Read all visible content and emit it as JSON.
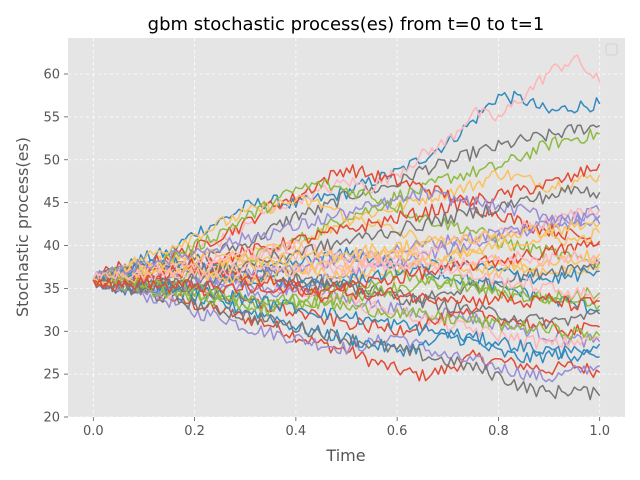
{
  "chart_data": {
    "type": "line",
    "title": "gbm stochastic process(es) from t=0 to t=1",
    "xlabel": "Time",
    "ylabel": "Stochastic process(es)",
    "xlim": [
      -0.05,
      1.05
    ],
    "ylim": [
      20,
      64.2
    ],
    "xticks": [
      0.0,
      0.2,
      0.4,
      0.6,
      0.8,
      1.0
    ],
    "xtick_labels": [
      "0.0",
      "0.2",
      "0.4",
      "0.6",
      "0.8",
      "1.0"
    ],
    "yticks": [
      20,
      25,
      30,
      35,
      40,
      45,
      50,
      55,
      60
    ],
    "ytick_labels": [
      "20",
      "25",
      "30",
      "35",
      "40",
      "45",
      "50",
      "55",
      "60"
    ],
    "grid": true,
    "legend": "top-right (empty)",
    "style": "ggplot",
    "x_start": 0.0,
    "x_end": 1.0,
    "start_value": 36,
    "palette": [
      "#e24a33",
      "#348abd",
      "#988ed5",
      "#777777",
      "#fbc15e",
      "#8eba42",
      "#ffb5b8"
    ],
    "series": [
      {
        "values": [
          36,
          37.5,
          35.2,
          34.0,
          33.1,
          32.5,
          31.5,
          30.8,
          29.5,
          28.5,
          27.8,
          26.5,
          25.5,
          24.8,
          25.6,
          27.0,
          26.5,
          26.0,
          25.5,
          26.0,
          25.2
        ]
      },
      {
        "values": [
          36,
          37.0,
          38.5,
          39.2,
          41.5,
          42.8,
          44.5,
          45.2,
          44.8,
          45.5,
          46.2,
          47.5,
          48.5,
          50.2,
          52.0,
          54.5,
          57.5,
          57.0,
          55.5,
          56.2,
          56.5
        ]
      },
      {
        "values": [
          36,
          35.0,
          34.2,
          33.5,
          32.1,
          31.8,
          30.5,
          29.8,
          29.2,
          28.5,
          28.0,
          28.6,
          29.5,
          28.1,
          27.0,
          26.5,
          25.8,
          25.1,
          24.5,
          25.3,
          26.0
        ]
      },
      {
        "values": [
          36,
          37.2,
          36.8,
          37.5,
          38.2,
          39.5,
          40.1,
          41.8,
          43.5,
          44.2,
          45.8,
          46.5,
          47.2,
          48.9,
          49.5,
          50.8,
          51.5,
          52.3,
          52.8,
          53.5,
          54.0
        ]
      },
      {
        "values": [
          36,
          36.5,
          37.8,
          38.5,
          38.1,
          37.5,
          38.9,
          39.5,
          40.2,
          41.5,
          43.0,
          43.8,
          44.5,
          45.5,
          46.2,
          47.0,
          48.5,
          47.8,
          46.9,
          47.5,
          48.2
        ]
      },
      {
        "values": [
          36,
          35.5,
          36.2,
          35.8,
          36.5,
          37.2,
          38.5,
          39.2,
          40.5,
          41.8,
          43.5,
          44.2,
          45.8,
          46.5,
          47.9,
          48.5,
          49.2,
          50.5,
          51.8,
          52.5,
          53.0
        ]
      },
      {
        "values": [
          36,
          36.8,
          37.5,
          38.2,
          39.8,
          40.5,
          42.2,
          44.0,
          45.5,
          46.2,
          47.5,
          46.8,
          48.5,
          50.5,
          52.2,
          55.5,
          54.8,
          57.5,
          60.2,
          61.8,
          59.0
        ]
      },
      {
        "values": [
          36,
          36.2,
          37.5,
          38.8,
          39.5,
          41.2,
          42.5,
          44.8,
          45.5,
          47.5,
          49.0,
          48.2,
          47.5,
          46.8,
          45.9,
          44.5,
          43.8,
          42.5,
          41.8,
          41.2,
          40.5
        ]
      },
      {
        "values": [
          36,
          34.8,
          35.2,
          34.5,
          33.8,
          33.2,
          32.5,
          31.8,
          30.5,
          29.8,
          29.2,
          28.5,
          27.8,
          28.2,
          29.5,
          28.8,
          27.5,
          26.8,
          27.2,
          27.8,
          28.5
        ]
      },
      {
        "values": [
          36,
          36.5,
          35.8,
          36.2,
          37.5,
          36.8,
          35.5,
          34.8,
          35.2,
          34.5,
          33.8,
          33.2,
          32.5,
          31.8,
          32.2,
          31.5,
          30.8,
          30.2,
          29.5,
          29.0,
          28.8
        ]
      },
      {
        "values": [
          36,
          35.2,
          34.5,
          33.8,
          33.2,
          32.5,
          31.8,
          31.2,
          30.5,
          29.8,
          29.2,
          28.5,
          27.8,
          27.2,
          26.5,
          25.8,
          24.8,
          23.5,
          22.8,
          23.2,
          22.5
        ]
      },
      {
        "values": [
          36,
          37.2,
          38.5,
          39.8,
          41.2,
          42.5,
          43.8,
          44.5,
          45.2,
          44.8,
          43.5,
          42.8,
          41.5,
          40.8,
          39.5,
          38.8,
          38.2,
          37.5,
          36.8,
          37.2,
          37.5
        ]
      },
      {
        "values": [
          36,
          36.8,
          37.2,
          38.5,
          39.8,
          41.5,
          43.2,
          44.8,
          46.5,
          47.2,
          46.5,
          45.8,
          44.5,
          43.2,
          42.5,
          41.8,
          40.5,
          39.8,
          39.2,
          38.5,
          38.0
        ]
      },
      {
        "values": [
          36,
          35.8,
          35.2,
          34.5,
          34.8,
          35.5,
          36.2,
          35.5,
          34.8,
          34.2,
          33.5,
          32.8,
          32.2,
          31.5,
          30.8,
          30.2,
          29.5,
          29.0,
          28.5,
          28.8,
          29.2
        ]
      },
      {
        "values": [
          36,
          36.2,
          36.8,
          37.5,
          37.8,
          38.5,
          39.2,
          39.8,
          40.5,
          41.2,
          41.8,
          42.5,
          43.2,
          43.8,
          44.5,
          45.2,
          45.8,
          46.5,
          47.2,
          48.0,
          49.5
        ]
      },
      {
        "values": [
          36,
          35.5,
          35.0,
          34.8,
          35.2,
          35.8,
          36.5,
          37.2,
          37.8,
          38.5,
          39.0,
          38.5,
          37.8,
          37.2,
          36.5,
          35.8,
          35.2,
          34.5,
          33.8,
          33.2,
          32.5
        ]
      },
      {
        "values": [
          36,
          36.8,
          37.5,
          36.8,
          36.2,
          35.5,
          34.8,
          34.2,
          35.0,
          35.8,
          36.5,
          37.2,
          38.0,
          38.8,
          39.5,
          40.2,
          41.0,
          41.8,
          42.5,
          43.2,
          44.0
        ]
      },
      {
        "values": [
          36,
          35.2,
          34.8,
          35.5,
          36.2,
          36.8,
          37.5,
          37.0,
          36.5,
          35.8,
          35.2,
          34.8,
          34.2,
          33.8,
          34.5,
          35.2,
          35.8,
          36.5,
          37.0,
          37.5,
          38.0
        ]
      },
      {
        "values": [
          36,
          36.5,
          37.0,
          37.8,
          38.5,
          39.0,
          38.5,
          38.0,
          37.5,
          37.0,
          36.5,
          36.8,
          37.2,
          37.8,
          38.5,
          39.2,
          39.8,
          40.5,
          41.0,
          40.5,
          41.5
        ]
      },
      {
        "values": [
          36,
          35.8,
          35.5,
          35.0,
          34.5,
          34.0,
          33.5,
          33.2,
          33.8,
          34.5,
          35.2,
          35.8,
          36.5,
          36.0,
          35.5,
          35.0,
          34.5,
          34.0,
          33.8,
          34.2,
          34.5
        ]
      },
      {
        "values": [
          36,
          36.2,
          35.8,
          36.5,
          37.2,
          37.8,
          38.5,
          39.2,
          38.8,
          38.2,
          37.5,
          38.2,
          38.8,
          39.5,
          40.2,
          40.8,
          41.5,
          42.2,
          42.8,
          43.5,
          44.2
        ]
      },
      {
        "values": [
          36,
          35.5,
          36.0,
          35.5,
          35.0,
          34.2,
          33.5,
          32.8,
          32.2,
          31.5,
          31.0,
          30.5,
          30.2,
          30.8,
          31.5,
          32.0,
          31.5,
          31.0,
          30.5,
          30.0,
          30.5
        ]
      },
      {
        "values": [
          36,
          36.8,
          37.5,
          38.0,
          37.5,
          37.0,
          36.5,
          36.0,
          35.5,
          35.2,
          35.8,
          36.5,
          37.0,
          37.5,
          38.0,
          37.5,
          37.0,
          36.5,
          36.0,
          36.5,
          37.0
        ]
      },
      {
        "values": [
          36,
          35.2,
          34.5,
          35.0,
          35.5,
          36.0,
          36.5,
          37.0,
          37.5,
          38.0,
          38.5,
          39.0,
          39.5,
          40.0,
          40.5,
          41.0,
          41.5,
          42.0,
          42.5,
          43.0,
          43.5
        ]
      },
      {
        "values": [
          36,
          36.5,
          36.0,
          35.5,
          35.0,
          35.5,
          36.0,
          36.5,
          36.0,
          35.5,
          35.0,
          34.5,
          34.0,
          33.5,
          33.0,
          32.5,
          32.0,
          31.5,
          31.0,
          31.5,
          32.0
        ]
      },
      {
        "values": [
          36,
          37.0,
          38.0,
          37.5,
          37.0,
          36.5,
          36.0,
          36.5,
          37.0,
          37.5,
          38.0,
          38.5,
          39.0,
          38.5,
          38.0,
          37.5,
          37.0,
          37.5,
          38.0,
          38.5,
          39.0
        ]
      },
      {
        "values": [
          36,
          35.5,
          35.0,
          34.5,
          34.0,
          33.5,
          33.0,
          32.5,
          33.0,
          33.5,
          34.0,
          34.5,
          35.0,
          35.5,
          36.0,
          35.5,
          35.0,
          34.5,
          34.0,
          33.5,
          33.0
        ]
      },
      {
        "values": [
          36,
          36.5,
          37.0,
          37.5,
          38.0,
          38.5,
          39.0,
          39.5,
          40.0,
          39.5,
          39.0,
          38.5,
          38.0,
          37.5,
          37.0,
          36.5,
          36.0,
          35.5,
          35.0,
          34.5,
          34.0
        ]
      },
      {
        "values": [
          36,
          35.8,
          36.2,
          36.8,
          37.2,
          36.8,
          36.2,
          35.8,
          35.2,
          34.8,
          35.2,
          35.8,
          36.2,
          36.8,
          37.2,
          37.8,
          38.2,
          38.8,
          39.2,
          39.8,
          40.2
        ]
      },
      {
        "values": [
          36,
          36.2,
          35.8,
          35.2,
          34.8,
          34.2,
          33.8,
          33.2,
          32.8,
          32.2,
          31.8,
          31.2,
          30.8,
          30.2,
          29.8,
          29.2,
          28.8,
          28.2,
          27.8,
          27.2,
          27.0
        ]
      },
      {
        "values": [
          36,
          37.0,
          37.8,
          38.5,
          39.2,
          40.0,
          40.8,
          41.5,
          42.2,
          43.0,
          43.8,
          44.5,
          45.2,
          46.0,
          45.5,
          45.0,
          44.5,
          44.0,
          43.5,
          43.0,
          42.5
        ]
      },
      {
        "values": [
          36,
          35.5,
          35.2,
          35.8,
          36.5,
          37.2,
          37.8,
          38.5,
          39.2,
          39.8,
          40.5,
          41.2,
          41.8,
          42.5,
          43.2,
          43.8,
          44.5,
          45.2,
          45.8,
          46.5,
          46.2
        ]
      },
      {
        "values": [
          36,
          36.2,
          36.5,
          36.8,
          37.2,
          37.5,
          37.8,
          38.2,
          38.5,
          38.8,
          39.2,
          39.5,
          39.8,
          40.2,
          40.5,
          40.8,
          41.2,
          41.5,
          41.8,
          42.2,
          42.5
        ]
      },
      {
        "values": [
          36,
          35.8,
          35.5,
          35.2,
          34.8,
          34.5,
          34.2,
          33.8,
          33.5,
          33.2,
          32.8,
          32.5,
          32.2,
          31.8,
          31.5,
          31.2,
          30.8,
          30.5,
          30.2,
          29.8,
          29.5
        ]
      },
      {
        "values": [
          36,
          36.8,
          36.2,
          37.0,
          36.5,
          37.2,
          36.8,
          37.5,
          37.0,
          37.8,
          37.2,
          38.0,
          37.5,
          38.2,
          37.8,
          38.5,
          38.0,
          38.8,
          38.2,
          39.0,
          38.5
        ]
      },
      {
        "values": [
          36,
          35.2,
          35.8,
          35.0,
          35.5,
          34.8,
          35.2,
          34.5,
          35.0,
          34.2,
          34.8,
          34.0,
          34.5,
          33.8,
          34.2,
          33.5,
          34.0,
          33.2,
          33.8,
          33.0,
          33.5
        ]
      }
    ]
  }
}
